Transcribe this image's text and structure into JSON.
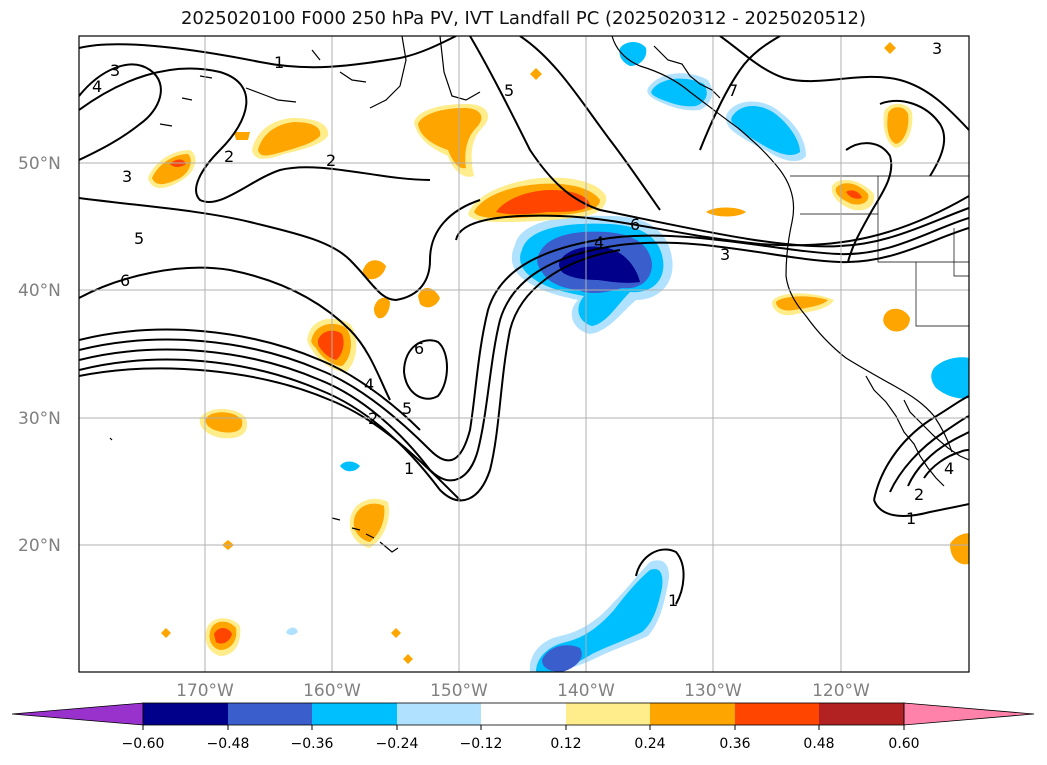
{
  "title": "2025020100 F000 250 hPa PV, IVT Landfall PC (2025020312 - 2025020512)",
  "map": {
    "lat_labels": [
      "50°N",
      "40°N",
      "30°N",
      "20°N"
    ],
    "lon_labels": [
      "170°W",
      "160°W",
      "150°W",
      "140°W",
      "130°W",
      "120°W"
    ],
    "lat_values": [
      50,
      40,
      30,
      20
    ],
    "lon_values": [
      -170,
      -160,
      -150,
      -140,
      -130,
      -120
    ],
    "extent": {
      "lon": [
        -180,
        -110
      ],
      "lat": [
        10,
        60
      ]
    },
    "contour_labels": [
      "1",
      "2",
      "3",
      "4",
      "5",
      "6",
      "2",
      "3",
      "5",
      "6",
      "4",
      "5",
      "6",
      "4",
      "2",
      "1",
      "3",
      "1",
      "2",
      "3",
      "4",
      "7",
      "1"
    ],
    "colorbar": {
      "ticks": [
        "−0.60",
        "−0.48",
        "−0.36",
        "−0.24",
        "−0.12",
        "0.12",
        "0.24",
        "0.36",
        "0.48",
        "0.60"
      ],
      "colors": [
        "#9932cc",
        "#00008b",
        "#3a5fcd",
        "#00bfff",
        "#b0e2ff",
        "#ffffff",
        "#ffec8b",
        "#ffa500",
        "#ff4500",
        "#b22222",
        "#ff82ab"
      ],
      "min_color": "#9932cc",
      "max_color": "#ff82ab"
    }
  },
  "colors": {
    "grid": "#b0b0b0",
    "contour": "#000000",
    "lightblue": "#b0e2ff",
    "cyan": "#00bfff",
    "blue": "#3a5fcd",
    "navy": "#00008b",
    "yellow": "#ffec8b",
    "orange": "#ffa500",
    "red": "#ff4500",
    "darkred": "#b22222"
  }
}
